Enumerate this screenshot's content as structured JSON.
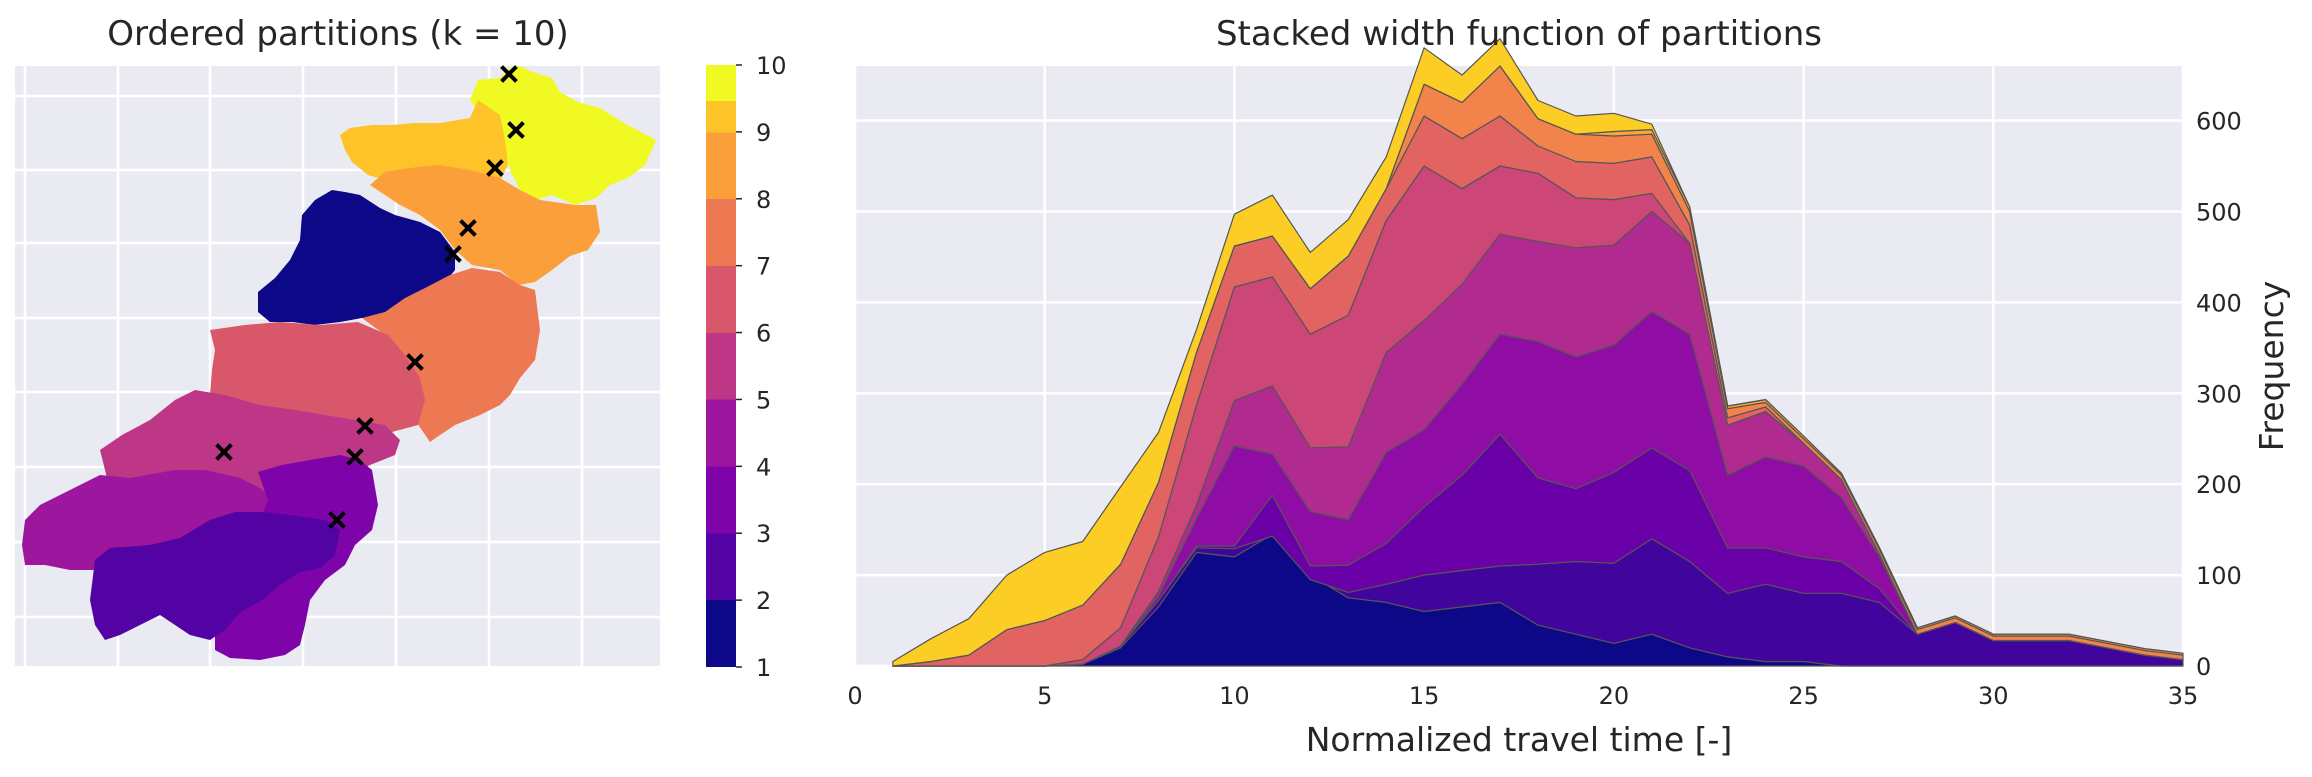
{
  "chart_data": [
    {
      "type": "heatmap",
      "title": "Ordered partitions (k = 10)",
      "colormap": "plasma",
      "colorbar": {
        "min": 1,
        "max": 10,
        "ticks": [
          "1",
          "2",
          "3",
          "4",
          "5",
          "6",
          "7",
          "8",
          "9",
          "10"
        ]
      },
      "outlet_marker": "x-mark",
      "grid": true,
      "partitions": [
        1,
        2,
        3,
        4,
        5,
        6,
        7,
        8,
        9,
        10
      ]
    },
    {
      "type": "area",
      "stacked": true,
      "colormap": "plasma",
      "title": "Stacked width function of partitions",
      "xlabel": "Normalized travel time [-]",
      "ylabel": "Frequency",
      "xlim": [
        0,
        35
      ],
      "ylim": [
        0,
        660
      ],
      "xticks": [
        "0",
        "5",
        "10",
        "15",
        "20",
        "25",
        "30",
        "35"
      ],
      "yticks": [
        "0",
        "100",
        "200",
        "300",
        "400",
        "500",
        "600"
      ],
      "yaxis_side": "right",
      "grid": true,
      "x": [
        1,
        2,
        3,
        4,
        5,
        6,
        7,
        8,
        9,
        10,
        11,
        12,
        13,
        14,
        15,
        16,
        17,
        18,
        19,
        20,
        21,
        22,
        23,
        24,
        25,
        26,
        27,
        28,
        29,
        30,
        31,
        32,
        33,
        34,
        35
      ],
      "series": [
        {
          "values": [
            0,
            0,
            0,
            0,
            0,
            2,
            20,
            65,
            125,
            120,
            145,
            100,
            75,
            70,
            60,
            65,
            70,
            45,
            35,
            25,
            35,
            20,
            10,
            5,
            5,
            0,
            0,
            0,
            0,
            0,
            0,
            0,
            0,
            0,
            0
          ]
        },
        {
          "values": [
            0,
            0,
            0,
            0,
            0,
            0,
            2,
            7,
            5,
            9,
            -2,
            -5,
            6,
            20,
            40,
            40,
            40,
            67,
            80,
            88,
            105,
            95,
            70,
            85,
            75,
            80,
            70,
            35,
            48,
            28,
            28,
            28,
            20,
            12,
            7
          ]
        },
        {
          "values": [
            0,
            0,
            0,
            0,
            0,
            0,
            0,
            0,
            2,
            3,
            45,
            15,
            30,
            45,
            75,
            105,
            145,
            95,
            80,
            100,
            100,
            100,
            50,
            40,
            40,
            35,
            15,
            0,
            0,
            0,
            0,
            0,
            0,
            0,
            0
          ]
        },
        {
          "values": [
            0,
            0,
            0,
            0,
            0,
            0,
            0,
            5,
            30,
            110,
            45,
            60,
            50,
            100,
            85,
            100,
            110,
            150,
            145,
            140,
            150,
            150,
            80,
            100,
            100,
            70,
            35,
            0,
            0,
            0,
            0,
            0,
            0,
            0,
            0
          ]
        },
        {
          "values": [
            0,
            0,
            0,
            0,
            0,
            0,
            0,
            5,
            15,
            50,
            75,
            70,
            80,
            110,
            120,
            110,
            110,
            110,
            120,
            110,
            110,
            100,
            55,
            50,
            25,
            20,
            3,
            0,
            0,
            0,
            0,
            0,
            0,
            0,
            0
          ]
        },
        {
          "values": [
            0,
            0,
            0,
            0,
            0,
            5,
            20,
            60,
            110,
            125,
            120,
            125,
            145,
            145,
            170,
            105,
            75,
            75,
            55,
            50,
            20,
            0,
            0,
            0,
            0,
            0,
            0,
            0,
            0,
            0,
            0,
            0,
            0,
            0,
            0
          ]
        },
        {
          "values": [
            0,
            5,
            12,
            40,
            50,
            60,
            70,
            60,
            58,
            45,
            45,
            50,
            65,
            35,
            55,
            55,
            55,
            30,
            40,
            40,
            40,
            20,
            8,
            5,
            0,
            0,
            0,
            0,
            0,
            0,
            0,
            0,
            0,
            0,
            0
          ]
        },
        {
          "values": [
            0,
            0,
            0,
            0,
            0,
            0,
            0,
            0,
            0,
            0,
            0,
            0,
            0,
            0,
            35,
            40,
            55,
            30,
            30,
            30,
            25,
            15,
            10,
            5,
            5,
            5,
            5,
            5,
            5,
            5,
            5,
            5,
            5,
            5,
            5
          ]
        },
        {
          "values": [
            0,
            0,
            0,
            0,
            0,
            0,
            0,
            0,
            0,
            0,
            0,
            0,
            0,
            0,
            0,
            0,
            0,
            0,
            0,
            5,
            5,
            5,
            3,
            3,
            3,
            2,
            2,
            2,
            2,
            2,
            2,
            2,
            2,
            2,
            2
          ]
        },
        {
          "values": [
            5,
            25,
            40,
            60,
            75,
            70,
            85,
            55,
            25,
            35,
            45,
            40,
            40,
            35,
            40,
            30,
            30,
            20,
            20,
            20,
            6,
            0,
            0,
            0,
            0,
            0,
            0,
            0,
            0,
            0,
            0,
            0,
            0,
            0,
            0
          ]
        }
      ]
    }
  ]
}
